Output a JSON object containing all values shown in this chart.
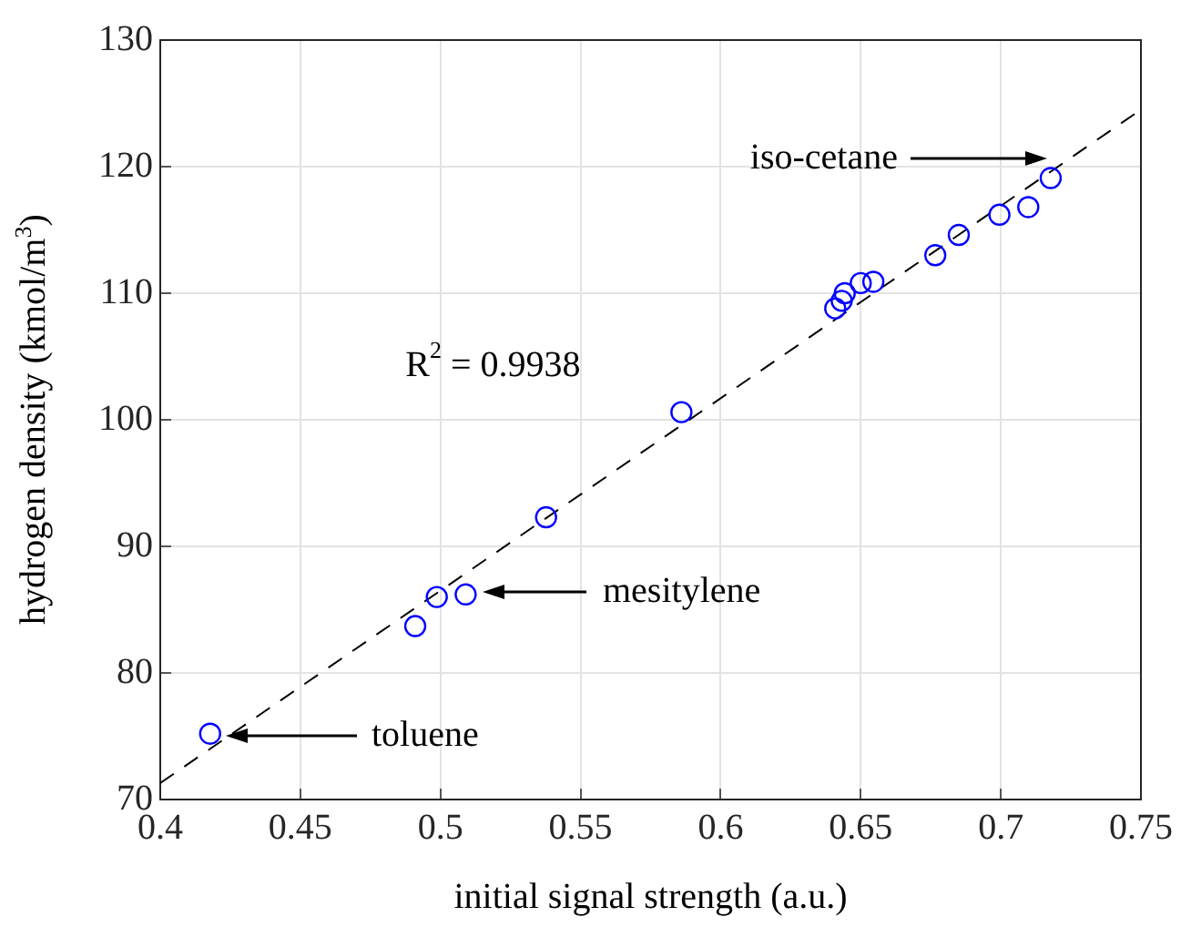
{
  "chart_data": {
    "type": "scatter",
    "xlabel": "initial signal strength (a.u.)",
    "ylabel": "hydrogen density (kmol/m$^{3}$)",
    "xlim": [
      0.4,
      0.75
    ],
    "xticks": [
      0.4,
      0.45,
      0.5,
      0.55,
      0.6,
      0.65,
      0.7,
      0.75
    ],
    "ylim": [
      70,
      130
    ],
    "yticks": [
      70,
      80,
      90,
      100,
      110,
      120,
      130
    ],
    "grid": true,
    "legend": false,
    "marker": "circle",
    "series": [
      {
        "color": "#0000ff",
        "x": [
          0.4178,
          0.491,
          0.4987,
          0.509,
          0.5377,
          0.586,
          0.6409,
          0.6432,
          0.6443,
          0.65,
          0.6545,
          0.6766,
          0.685,
          0.6995,
          0.7098,
          0.7178
        ],
        "values": [
          75.2,
          83.7,
          86.0,
          86.2,
          92.3,
          100.6,
          108.8,
          109.4,
          110.0,
          110.8,
          110.9,
          113.0,
          114.6,
          116.2,
          116.8,
          119.1
        ]
      },
      {
        "type": "line",
        "color": "#000000",
        "line_style": "dashed",
        "marker": "none",
        "x": [
          0.4,
          0.75
        ],
        "values": [
          71.3,
          124.5
        ]
      }
    ],
    "annotations": [
      "R$^{2}$ = 0.9938",
      "toluene",
      "mesitylene",
      "iso-cetane"
    ]
  }
}
